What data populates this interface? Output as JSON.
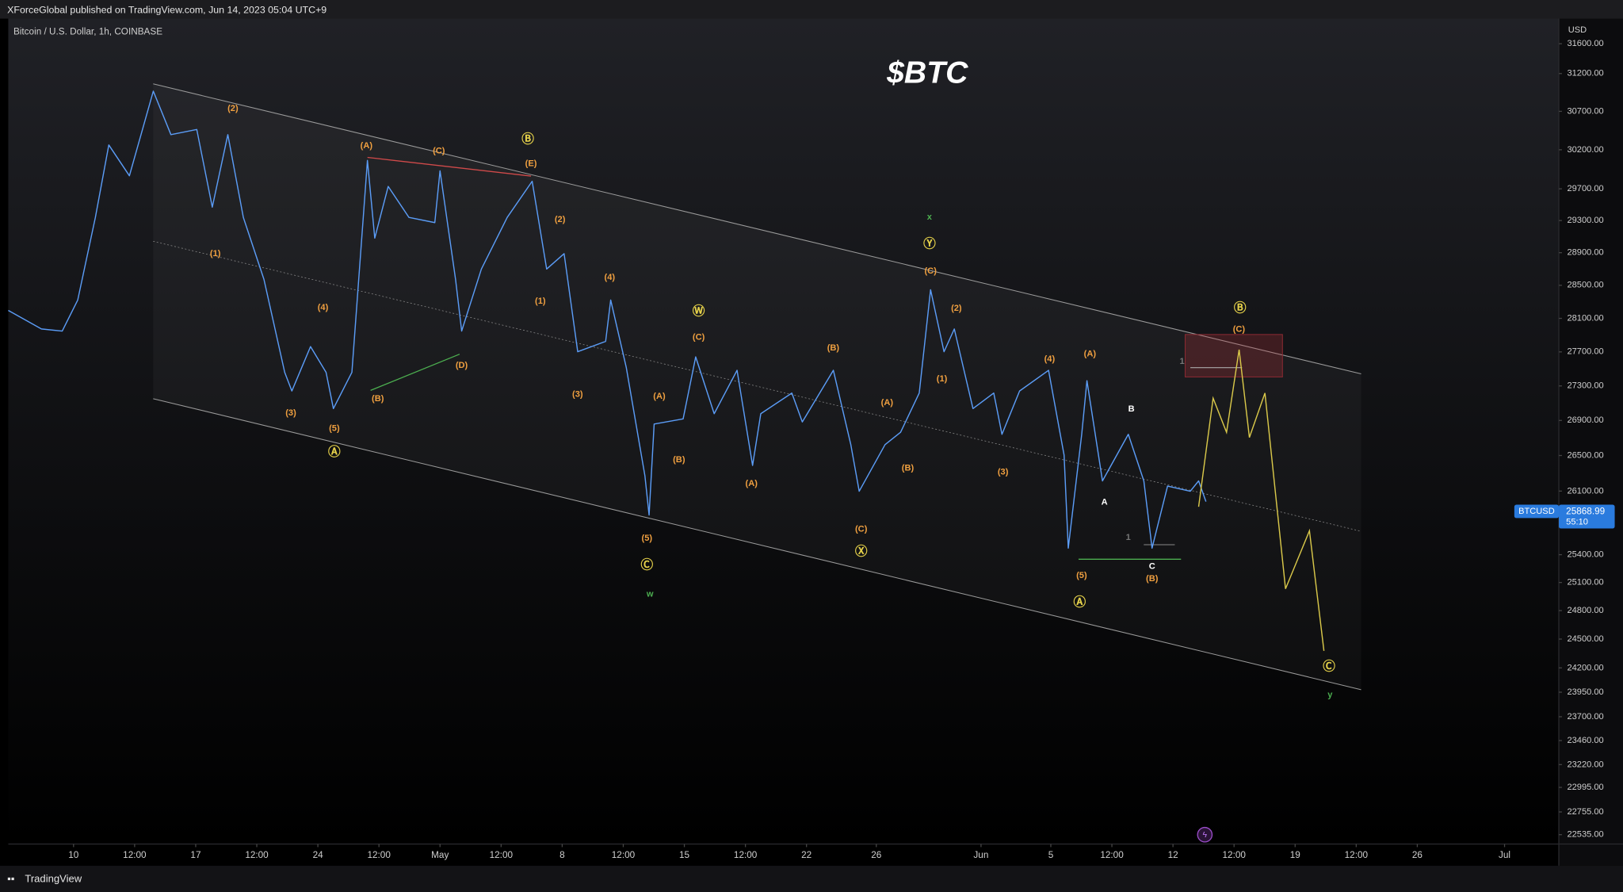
{
  "header": {
    "publisher": "XForceGlobal published on TradingView.com, Jun 14, 2023 05:04 UTC+9"
  },
  "footer": {
    "brand": "TradingView"
  },
  "chart_data": {
    "type": "line",
    "title": "$BTC",
    "symbol": "Bitcoin / U.S. Dollar, 1h, COINBASE",
    "currency": "USD",
    "log_scale": true,
    "grid": false,
    "xlim": [
      6.26,
      95.11
    ],
    "ylim": [
      22445,
      31941
    ],
    "xticks": [
      10,
      {
        "value": 13.5,
        "label": "12:00"
      },
      17,
      {
        "value": 20.5,
        "label": "12:00"
      },
      24,
      {
        "value": 27.5,
        "label": "12:00"
      },
      {
        "value": 31,
        "label": "May"
      },
      {
        "value": 34.5,
        "label": "12:00"
      },
      {
        "value": 38,
        "label": "8"
      },
      {
        "value": 41.5,
        "label": "12:00"
      },
      {
        "value": 45,
        "label": "15"
      },
      {
        "value": 48.5,
        "label": "12:00"
      },
      {
        "value": 52,
        "label": "22"
      },
      {
        "value": 56,
        "label": "26"
      },
      {
        "value": 62,
        "label": "Jun"
      },
      {
        "value": 66,
        "label": "5"
      },
      {
        "value": 69.5,
        "label": "12:00"
      },
      {
        "value": 73,
        "label": "12"
      },
      {
        "value": 76.5,
        "label": "12:00"
      },
      {
        "value": 80,
        "label": "19"
      },
      {
        "value": 83.5,
        "label": "12:00"
      },
      {
        "value": 87,
        "label": "26"
      },
      {
        "value": 92,
        "label": "Jul"
      }
    ],
    "yticks": [
      {
        "value": 31600,
        "label": "31600.00"
      },
      {
        "value": 31200,
        "label": "31200.00"
      },
      {
        "value": 30700,
        "label": "30700.00"
      },
      {
        "value": 30200,
        "label": "30200.00"
      },
      {
        "value": 29700,
        "label": "29700.00"
      },
      {
        "value": 29300,
        "label": "29300.00"
      },
      {
        "value": 28900,
        "label": "28900.00"
      },
      {
        "value": 28500,
        "label": "28500.00"
      },
      {
        "value": 28100,
        "label": "28100.00"
      },
      {
        "value": 27700,
        "label": "27700.00"
      },
      {
        "value": 27300,
        "label": "27300.00"
      },
      {
        "value": 26900,
        "label": "26900.00"
      },
      {
        "value": 26500,
        "label": "26500.00"
      },
      {
        "value": 26100,
        "label": "26100.00"
      },
      {
        "value": 25400,
        "label": "25400.00"
      },
      {
        "value": 25100,
        "label": "25100.00"
      },
      {
        "value": 24800,
        "label": "24800.00"
      },
      {
        "value": 24500,
        "label": "24500.00"
      },
      {
        "value": 24200,
        "label": "24200.00"
      },
      {
        "value": 23950,
        "label": "23950.00"
      },
      {
        "value": 23700,
        "label": "23700.00"
      },
      {
        "value": 23460,
        "label": "23460.00"
      },
      {
        "value": 23220,
        "label": "23220.00"
      },
      {
        "value": 22995,
        "label": "22995.00"
      },
      {
        "value": 22755,
        "label": "22755.00"
      },
      {
        "value": 22535,
        "label": "22535.00"
      }
    ],
    "x": [
      6.26,
      8.16,
      9.35,
      10.24,
      11.25,
      12.02,
      13.2,
      14.57,
      15.58,
      17.06,
      17.95,
      18.84,
      19.73,
      20.91,
      22.1,
      22.51,
      23.58,
      24.47,
      24.89,
      25.95,
      26.84,
      27.26,
      28.03,
      29.22,
      30.7,
      31.0,
      31.89,
      32.24,
      33.37,
      34.85,
      36.28,
      37.11,
      38.11,
      38.89,
      40.49,
      40.78,
      41.67,
      42.74,
      42.98,
      43.27,
      44.93,
      45.65,
      46.71,
      48.02,
      48.91,
      49.38,
      51.16,
      51.76,
      53.54,
      54.54,
      55.02,
      56.5,
      57.39,
      58.46,
      59.11,
      59.88,
      60.47,
      61.54,
      62.73,
      63.2,
      64.21,
      65.87,
      66.76,
      67.0,
      67.77,
      68.07,
      68.96,
      70.44,
      71.33,
      71.8,
      72.69,
      73.99,
      74.47,
      74.89
    ],
    "series": [
      {
        "name": "BTCUSD",
        "color": "#5b9cf6",
        "values": [
          28196,
          27973,
          27948,
          28321,
          29339,
          30262,
          29866,
          30966,
          30396,
          30463,
          29468,
          30396,
          29339,
          28572,
          27459,
          27241,
          27763,
          27459,
          27037,
          27459,
          30062,
          29081,
          29730,
          29339,
          29274,
          29929,
          28572,
          27948,
          28699,
          29339,
          29796,
          28699,
          28888,
          27702,
          27825,
          28321,
          27519,
          26272,
          25834,
          26859,
          26918,
          27641,
          26978,
          27483,
          26388,
          26978,
          27217,
          26883,
          27483,
          26623,
          26098,
          26623,
          26764,
          27217,
          28446,
          27702,
          27973,
          27037,
          27217,
          26741,
          27241,
          27483,
          26505,
          25471,
          26741,
          27361,
          26214,
          26741,
          26214,
          25471,
          26156,
          26098,
          26214,
          25983
        ]
      }
    ],
    "projection": {
      "color": "#d9c84a",
      "x": [
        74.47,
        75.3,
        76.07,
        76.79,
        77.38,
        78.27,
        79.45,
        80.82,
        81.65
      ],
      "values": [
        25926,
        27157,
        26764,
        27727,
        26705,
        27217,
        25032,
        25661,
        24377
      ]
    },
    "last_price": {
      "value": 25868.99,
      "countdown": "55:10",
      "color": "#2a7bde"
    },
    "wave_labels": [
      {
        "text": "(2)",
        "color": "#f0a040"
      },
      {
        "text": "(1)",
        "color": "#f0a040"
      },
      {
        "text": "(4)",
        "color": "#f0a040"
      },
      {
        "text": "(3)",
        "color": "#f0a040"
      },
      {
        "text": "(5)",
        "color": "#f0a040"
      },
      {
        "text": "Ⓐ",
        "color": "#e6d24a"
      },
      {
        "text": "(A)",
        "color": "#f0a040"
      },
      {
        "text": "(C)",
        "color": "#f0a040"
      },
      {
        "text": "Ⓑ",
        "color": "#e6d24a"
      },
      {
        "text": "(E)",
        "color": "#f0a040"
      },
      {
        "text": "(B)",
        "color": "#f0a040"
      },
      {
        "text": "(D)",
        "color": "#f0a040"
      },
      {
        "text": "(2)",
        "color": "#f0a040"
      },
      {
        "text": "(1)",
        "color": "#f0a040"
      },
      {
        "text": "(4)",
        "color": "#f0a040"
      },
      {
        "text": "(3)",
        "color": "#f0a040"
      },
      {
        "text": "(5)",
        "color": "#f0a040"
      },
      {
        "text": "Ⓒ",
        "color": "#e6d24a"
      },
      {
        "text": "w",
        "color": "#4caf50"
      },
      {
        "text": "Ⓦ",
        "color": "#e6d24a"
      },
      {
        "text": "(C)",
        "color": "#f0a040"
      },
      {
        "text": "(A)",
        "color": "#f0a040"
      },
      {
        "text": "(B)",
        "color": "#f0a040"
      },
      {
        "text": "(A)",
        "color": "#f0a040"
      },
      {
        "text": "(B)",
        "color": "#f0a040"
      },
      {
        "text": "(A)",
        "color": "#f0a040"
      },
      {
        "text": "(B)",
        "color": "#f0a040"
      },
      {
        "text": "(C)",
        "color": "#f0a040"
      },
      {
        "text": "Ⓧ",
        "color": "#e6d24a"
      },
      {
        "text": "x",
        "color": "#4caf50"
      },
      {
        "text": "Ⓨ",
        "color": "#e6d24a"
      },
      {
        "text": "(C)",
        "color": "#f0a040"
      },
      {
        "text": "(2)",
        "color": "#f0a040"
      },
      {
        "text": "(1)",
        "color": "#f0a040"
      },
      {
        "text": "(3)",
        "color": "#f0a040"
      },
      {
        "text": "(4)",
        "color": "#f0a040"
      },
      {
        "text": "(A)",
        "color": "#f0a040"
      },
      {
        "text": "(5)",
        "color": "#f0a040"
      },
      {
        "text": "Ⓐ",
        "color": "#e6d24a"
      },
      {
        "text": "B",
        "color": "#ffffff"
      },
      {
        "text": "A",
        "color": "#ffffff"
      },
      {
        "text": "C",
        "color": "#ffffff"
      },
      {
        "text": "(B)",
        "color": "#f0a040"
      },
      {
        "text": "1",
        "color": "#777777"
      },
      {
        "text": "1",
        "color": "#777777"
      },
      {
        "text": "Ⓑ",
        "color": "#e6d24a"
      },
      {
        "text": "(C)",
        "color": "#f0a040"
      },
      {
        "text": "Ⓒ",
        "color": "#e6d24a"
      },
      {
        "text": "y",
        "color": "#4caf50"
      }
    ]
  }
}
